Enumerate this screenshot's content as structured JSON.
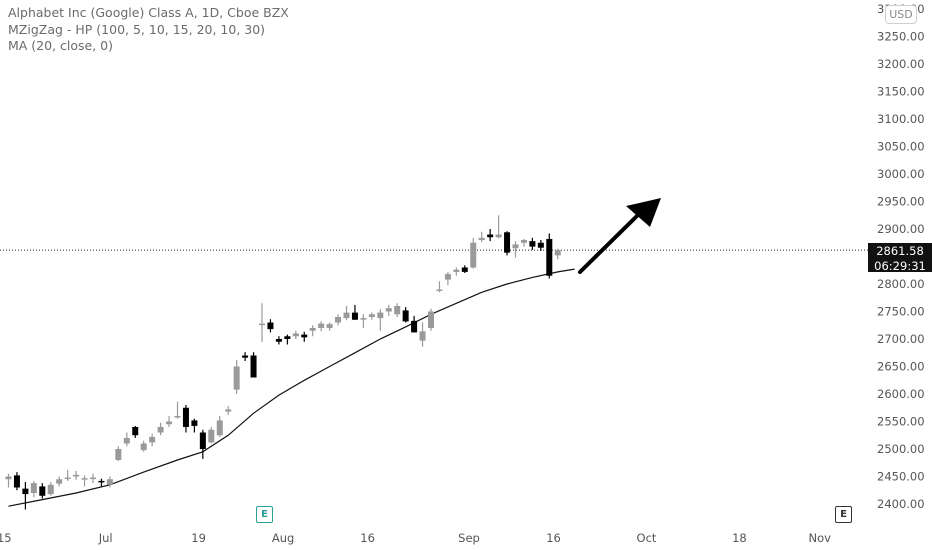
{
  "legend": {
    "symbol": "Alphabet Inc (Google) Class A, 1D, Cboe BZX",
    "indicator1": "MZigZag - HP (100, 5, 10, 15, 20, 10, 30)",
    "indicator2": "MA (20, close, 0)"
  },
  "currency": "USD",
  "last_price": "2861.58",
  "countdown": "06:29:31",
  "earnings_icon": "E",
  "colors": {
    "up": "#9a9a9a",
    "down": "#000000",
    "ma": "#111111",
    "axis_text": "#555555"
  },
  "chart_data": {
    "type": "candlestick",
    "title": "Alphabet Inc (Google) Class A, 1D, Cboe BZX",
    "y_ticks": [
      2400,
      2450,
      2500,
      2550,
      2600,
      2650,
      2700,
      2750,
      2800,
      2850,
      2900,
      2950,
      3000,
      3050,
      3100,
      3150,
      3200,
      3250,
      3300
    ],
    "y_tick_labels": [
      "2400.00",
      "2450.00",
      "2500.00",
      "2550.00",
      "2600.00",
      "2650.00",
      "2700.00",
      "2750.00",
      "2800.00",
      "2850.00",
      "2900.00",
      "2950.00",
      "3000.00",
      "3050.00",
      "3100.00",
      "3150.00",
      "3200.00",
      "3250.00",
      "3300.00"
    ],
    "x_labels": [
      {
        "label": "15",
        "index": -0.5
      },
      {
        "label": "Jul",
        "index": 11.5
      },
      {
        "label": "19",
        "index": 22.5
      },
      {
        "label": "Aug",
        "index": 32.5
      },
      {
        "label": "16",
        "index": 42.5
      },
      {
        "label": "Sep",
        "index": 54.5
      },
      {
        "label": "16",
        "index": 64.5
      },
      {
        "label": "Oct",
        "index": 75.5
      },
      {
        "label": "18",
        "index": 86.5
      },
      {
        "label": "Nov",
        "index": 96
      }
    ],
    "candles": [
      {
        "o": 2445,
        "h": 2455,
        "l": 2430,
        "c": 2450
      },
      {
        "o": 2452,
        "h": 2458,
        "l": 2425,
        "c": 2430
      },
      {
        "o": 2428,
        "h": 2440,
        "l": 2390,
        "c": 2418
      },
      {
        "o": 2420,
        "h": 2442,
        "l": 2412,
        "c": 2438
      },
      {
        "o": 2432,
        "h": 2438,
        "l": 2410,
        "c": 2415
      },
      {
        "o": 2418,
        "h": 2440,
        "l": 2415,
        "c": 2435
      },
      {
        "o": 2437,
        "h": 2450,
        "l": 2432,
        "c": 2445
      },
      {
        "o": 2448,
        "h": 2462,
        "l": 2442,
        "c": 2448
      },
      {
        "o": 2450,
        "h": 2460,
        "l": 2444,
        "c": 2453
      },
      {
        "o": 2445,
        "h": 2452,
        "l": 2432,
        "c": 2447
      },
      {
        "o": 2448,
        "h": 2455,
        "l": 2438,
        "c": 2448
      },
      {
        "o": 2442,
        "h": 2446,
        "l": 2432,
        "c": 2440
      },
      {
        "o": 2435,
        "h": 2450,
        "l": 2430,
        "c": 2445
      },
      {
        "o": 2480,
        "h": 2505,
        "l": 2478,
        "c": 2500
      },
      {
        "o": 2510,
        "h": 2530,
        "l": 2505,
        "c": 2520
      },
      {
        "o": 2540,
        "h": 2542,
        "l": 2520,
        "c": 2525
      },
      {
        "o": 2498,
        "h": 2515,
        "l": 2495,
        "c": 2510
      },
      {
        "o": 2512,
        "h": 2528,
        "l": 2505,
        "c": 2522
      },
      {
        "o": 2530,
        "h": 2548,
        "l": 2525,
        "c": 2540
      },
      {
        "o": 2545,
        "h": 2560,
        "l": 2540,
        "c": 2550
      },
      {
        "o": 2560,
        "h": 2586,
        "l": 2555,
        "c": 2560
      },
      {
        "o": 2575,
        "h": 2580,
        "l": 2530,
        "c": 2540
      },
      {
        "o": 2552,
        "h": 2555,
        "l": 2530,
        "c": 2542
      },
      {
        "o": 2530,
        "h": 2535,
        "l": 2482,
        "c": 2500
      },
      {
        "o": 2512,
        "h": 2540,
        "l": 2510,
        "c": 2535
      },
      {
        "o": 2525,
        "h": 2560,
        "l": 2522,
        "c": 2552
      },
      {
        "o": 2568,
        "h": 2578,
        "l": 2562,
        "c": 2572
      },
      {
        "o": 2608,
        "h": 2662,
        "l": 2600,
        "c": 2650
      },
      {
        "o": 2670,
        "h": 2676,
        "l": 2660,
        "c": 2666
      },
      {
        "o": 2670,
        "h": 2676,
        "l": 2630,
        "c": 2630
      },
      {
        "o": 2728,
        "h": 2765,
        "l": 2695,
        "c": 2728
      },
      {
        "o": 2730,
        "h": 2736,
        "l": 2712,
        "c": 2718
      },
      {
        "o": 2700,
        "h": 2705,
        "l": 2690,
        "c": 2695
      },
      {
        "o": 2705,
        "h": 2708,
        "l": 2690,
        "c": 2700
      },
      {
        "o": 2705,
        "h": 2715,
        "l": 2700,
        "c": 2710
      },
      {
        "o": 2708,
        "h": 2713,
        "l": 2695,
        "c": 2703
      },
      {
        "o": 2715,
        "h": 2725,
        "l": 2705,
        "c": 2720
      },
      {
        "o": 2720,
        "h": 2732,
        "l": 2714,
        "c": 2728
      },
      {
        "o": 2720,
        "h": 2730,
        "l": 2715,
        "c": 2727
      },
      {
        "o": 2730,
        "h": 2745,
        "l": 2725,
        "c": 2740
      },
      {
        "o": 2738,
        "h": 2760,
        "l": 2734,
        "c": 2748
      },
      {
        "o": 2748,
        "h": 2762,
        "l": 2735,
        "c": 2735
      },
      {
        "o": 2738,
        "h": 2745,
        "l": 2720,
        "c": 2738
      },
      {
        "o": 2740,
        "h": 2748,
        "l": 2735,
        "c": 2745
      },
      {
        "o": 2738,
        "h": 2754,
        "l": 2715,
        "c": 2748
      },
      {
        "o": 2750,
        "h": 2762,
        "l": 2742,
        "c": 2756
      },
      {
        "o": 2745,
        "h": 2765,
        "l": 2740,
        "c": 2760
      },
      {
        "o": 2752,
        "h": 2758,
        "l": 2730,
        "c": 2732
      },
      {
        "o": 2733,
        "h": 2742,
        "l": 2712,
        "c": 2712
      },
      {
        "o": 2697,
        "h": 2730,
        "l": 2686,
        "c": 2714
      },
      {
        "o": 2720,
        "h": 2755,
        "l": 2715,
        "c": 2750
      },
      {
        "o": 2790,
        "h": 2805,
        "l": 2785,
        "c": 2790
      },
      {
        "o": 2808,
        "h": 2822,
        "l": 2798,
        "c": 2818
      },
      {
        "o": 2822,
        "h": 2830,
        "l": 2815,
        "c": 2826
      },
      {
        "o": 2830,
        "h": 2834,
        "l": 2820,
        "c": 2822
      },
      {
        "o": 2830,
        "h": 2884,
        "l": 2828,
        "c": 2875
      },
      {
        "o": 2880,
        "h": 2895,
        "l": 2876,
        "c": 2884
      },
      {
        "o": 2890,
        "h": 2900,
        "l": 2878,
        "c": 2885
      },
      {
        "o": 2885,
        "h": 2925,
        "l": 2883,
        "c": 2890
      },
      {
        "o": 2894,
        "h": 2896,
        "l": 2852,
        "c": 2857
      },
      {
        "o": 2865,
        "h": 2878,
        "l": 2848,
        "c": 2872
      },
      {
        "o": 2875,
        "h": 2882,
        "l": 2868,
        "c": 2880
      },
      {
        "o": 2878,
        "h": 2884,
        "l": 2862,
        "c": 2868
      },
      {
        "o": 2875,
        "h": 2880,
        "l": 2860,
        "c": 2866
      },
      {
        "o": 2882,
        "h": 2892,
        "l": 2810,
        "c": 2815
      },
      {
        "o": 2852,
        "h": 2864,
        "l": 2845,
        "c": 2861.58
      }
    ],
    "ma20_label": "MA (20, close, 0)",
    "ma20": [
      [
        0,
        2396
      ],
      [
        4,
        2408
      ],
      [
        8,
        2420
      ],
      [
        12,
        2435
      ],
      [
        16,
        2458
      ],
      [
        20,
        2480
      ],
      [
        23,
        2495
      ],
      [
        26,
        2525
      ],
      [
        29,
        2565
      ],
      [
        32,
        2598
      ],
      [
        35,
        2625
      ],
      [
        38,
        2650
      ],
      [
        41,
        2675
      ],
      [
        44,
        2700
      ],
      [
        47,
        2722
      ],
      [
        50,
        2745
      ],
      [
        53,
        2765
      ],
      [
        56,
        2785
      ],
      [
        59,
        2800
      ],
      [
        62,
        2812
      ],
      [
        65,
        2822
      ],
      [
        67,
        2827
      ]
    ],
    "last_price": 2861.58
  }
}
